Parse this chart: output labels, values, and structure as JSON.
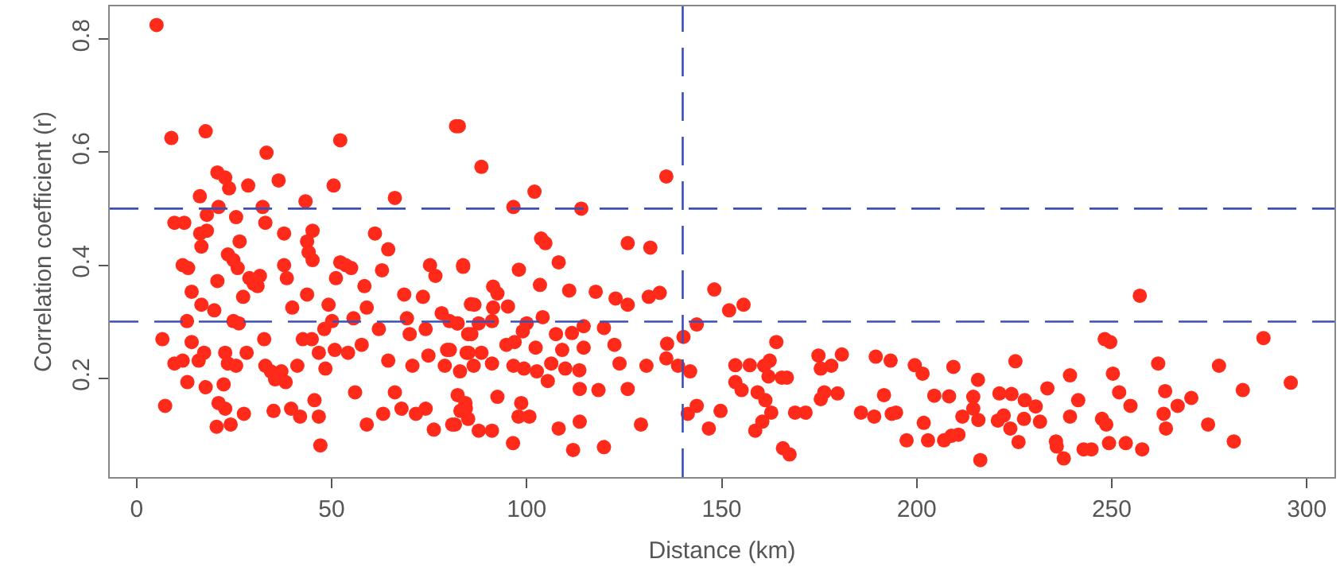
{
  "chart_data": {
    "type": "scatter",
    "xlabel": "Distance (km)",
    "ylabel": "Correlation coefficient (r)",
    "xlim": [
      -6.9,
      307.1
    ],
    "ylim": [
      0.025,
      0.858
    ],
    "xticks": [
      0,
      50,
      100,
      150,
      200,
      250,
      300
    ],
    "yticks": [
      0.2,
      0.4,
      0.6,
      0.8
    ],
    "marker": "circle",
    "ref_lines": [
      {
        "axis": "x",
        "value": 140,
        "color": "#3a4fb8",
        "line_style": "dashed"
      },
      {
        "axis": "y",
        "value": 0.5,
        "color": "#3a4fb8",
        "line_style": "dashed"
      },
      {
        "axis": "y",
        "value": 0.3,
        "color": "#3a4fb8",
        "line_style": "dashed"
      }
    ],
    "series": [
      {
        "color": "#ff2a1a",
        "x": [
          5.1,
          8.9,
          17.7,
          6.6,
          7.3,
          9.7,
          12.2,
          11.8,
          13.2,
          14.1,
          12.9,
          9.7,
          11.8,
          13.0,
          14.1,
          15.9,
          17.3,
          16.6,
          16.2,
          16.3,
          16.6,
          18.0,
          18.0,
          21.0,
          20.7,
          22.7,
          23.7,
          19.9,
          20.7,
          17.7,
          20.5,
          21.0,
          22.3,
          22.7,
          23.4,
          22.7,
          24.1,
          23.4,
          24.8,
          25.9,
          25.5,
          26.4,
          24.8,
          26.2,
          25.5,
          27.3,
          27.5,
          28.2,
          28.6,
          28.9,
          30.0,
          31.0,
          31.6,
          32.3,
          33.0,
          33.3,
          32.7,
          33.0,
          34.4,
          35.1,
          36.4,
          35.5,
          37.1,
          37.8,
          37.8,
          38.5,
          38.2,
          39.6,
          39.9,
          41.9,
          41.2,
          43.3,
          43.7,
          44.1,
          45.1,
          45.1,
          43.7,
          42.6,
          44.9,
          45.6,
          46.7,
          47.1,
          46.7,
          48.1,
          48.4,
          49.2,
          50.1,
          50.5,
          51.1,
          52.2,
          52.2,
          53.6,
          55.0,
          50.8,
          54.2,
          55.6,
          56.0,
          58.4,
          59.0,
          57.7,
          59.0,
          61.1,
          62.1,
          62.9,
          63.2,
          64.5,
          66.2,
          64.5,
          66.2,
          67.9,
          68.6,
          69.3,
          70.0,
          70.7,
          71.6,
          73.4,
          74.1,
          75.2,
          76.6,
          74.8,
          76.2,
          74.1,
          78.2,
          79.0,
          80.3,
          82.6,
          83.7,
          82.3,
          82.9,
          81.6,
          84.4,
          85.8,
          85.1,
          86.6,
          81.9,
          88.4,
          96.6,
          102.0,
          114.0,
          135.8,
          103.7,
          104.8,
          83.7,
          98.0,
          108.2,
          125.9,
          131.7,
          91.4,
          92.5,
          85.7,
          91.4,
          95.2,
          103.4,
          110.9,
          117.7,
          122.8,
          125.9,
          131.3,
          134.1,
          148.1,
          151.9,
          155.6,
          80.2,
          82.2,
          87.7,
          91.1,
          85.0,
          100.0,
          99.0,
          104.1,
          107.5,
          111.6,
          114.6,
          119.8,
          140.2,
          143.6,
          136.0,
          79.6,
          84.6,
          88.4,
          94.8,
          96.9,
          102.3,
          109.1,
          114.6,
          122.5,
          164.0,
          86.4,
          91.1,
          96.6,
          99.3,
          102.6,
          106.3,
          109.9,
          113.5,
          123.8,
          130.7,
          135.8,
          138.8,
          141.9,
          153.5,
          157.2,
          160.9,
          162.3,
          162.0,
          165.4,
          166.7,
          174.8,
          175.4,
          178.1,
          180.8,
          189.5,
          193.3,
          199.5,
          153.5,
          155.1,
          159.2,
          161.2,
          162.7,
          160.4,
          158.6,
          168.8,
          171.5,
          175.4,
          176.3,
          179.7,
          185.7,
          189.1,
          191.6,
          194.7,
          197.4,
          82.3,
          84.3,
          83.0,
          85.0,
          80.9,
          87.7,
          91.1,
          92.5,
          98.6,
          97.9,
          100.7,
          96.5,
          105.4,
          113.6,
          118.4,
          125.9,
          113.6,
          108.2,
          111.9,
          119.8,
          129.3,
          141.3,
          143.6,
          146.7,
          149.7,
          165.7,
          167.4,
          257.2,
          248.2,
          249.6,
          288.9,
          201.5,
          209.4,
          225.3,
          261.9,
          277.5,
          250.3,
          239.3,
          215.7,
          251.9,
          263.7,
          283.6,
          295.9,
          204.5,
          208.3,
          214.5,
          221.2,
          224.3,
          227.7,
          230.5,
          233.5,
          241.4,
          254.8,
          266.9,
          270.4,
          193.6,
          211.7,
          214.5,
          215.8,
          220.8,
          222.3,
          224.0,
          227.5,
          231.6,
          239.3,
          247.5,
          248.6,
          263.3,
          263.9,
          274.7,
          201.8,
          202.9,
          207.0,
          208.9,
          210.7,
          226.1,
          235.7,
          235.9,
          237.7,
          242.8,
          244.8,
          249.3,
          253.6,
          257.8,
          281.3,
          216.3
        ],
        "values": [
          0.825,
          0.625,
          0.637,
          0.269,
          0.151,
          0.475,
          0.475,
          0.4,
          0.395,
          0.353,
          0.301,
          0.226,
          0.231,
          0.193,
          0.264,
          0.231,
          0.245,
          0.33,
          0.522,
          0.456,
          0.433,
          0.489,
          0.461,
          0.503,
          0.564,
          0.555,
          0.536,
          0.32,
          0.372,
          0.184,
          0.114,
          0.156,
          0.189,
          0.245,
          0.226,
          0.146,
          0.118,
          0.419,
          0.409,
          0.395,
          0.485,
          0.442,
          0.301,
          0.297,
          0.222,
          0.344,
          0.137,
          0.245,
          0.541,
          0.377,
          0.367,
          0.363,
          0.381,
          0.503,
          0.475,
          0.599,
          0.269,
          0.222,
          0.212,
          0.142,
          0.55,
          0.198,
          0.212,
          0.456,
          0.4,
          0.377,
          0.193,
          0.146,
          0.325,
          0.132,
          0.222,
          0.513,
          0.442,
          0.423,
          0.461,
          0.409,
          0.348,
          0.269,
          0.269,
          0.161,
          0.132,
          0.081,
          0.245,
          0.287,
          0.217,
          0.33,
          0.301,
          0.541,
          0.377,
          0.621,
          0.405,
          0.4,
          0.395,
          0.25,
          0.245,
          0.306,
          0.175,
          0.363,
          0.325,
          0.259,
          0.118,
          0.456,
          0.287,
          0.391,
          0.137,
          0.428,
          0.519,
          0.231,
          0.175,
          0.146,
          0.348,
          0.306,
          0.278,
          0.222,
          0.137,
          0.344,
          0.287,
          0.4,
          0.381,
          0.24,
          0.109,
          0.146,
          0.315,
          0.222,
          0.25,
          0.646,
          0.4,
          0.297,
          0.212,
          0.118,
          0.146,
          0.278,
          0.245,
          0.33,
          0.646,
          0.574,
          0.503,
          0.53,
          0.5,
          0.557,
          0.447,
          0.439,
          0.397,
          0.392,
          0.405,
          0.439,
          0.431,
          0.362,
          0.35,
          0.331,
          0.325,
          0.327,
          0.365,
          0.355,
          0.353,
          0.341,
          0.33,
          0.344,
          0.351,
          0.357,
          0.32,
          0.33,
          0.301,
          0.297,
          0.297,
          0.301,
          0.278,
          0.297,
          0.283,
          0.308,
          0.278,
          0.28,
          0.292,
          0.289,
          0.273,
          0.295,
          0.261,
          0.25,
          0.245,
          0.245,
          0.259,
          0.264,
          0.254,
          0.25,
          0.254,
          0.259,
          0.264,
          0.222,
          0.226,
          0.222,
          0.217,
          0.212,
          0.226,
          0.217,
          0.214,
          0.226,
          0.222,
          0.235,
          0.222,
          0.212,
          0.223,
          0.223,
          0.222,
          0.231,
          0.203,
          0.201,
          0.201,
          0.24,
          0.217,
          0.222,
          0.242,
          0.238,
          0.231,
          0.223,
          0.193,
          0.179,
          0.175,
          0.161,
          0.139,
          0.123,
          0.107,
          0.139,
          0.139,
          0.163,
          0.175,
          0.173,
          0.139,
          0.132,
          0.17,
          0.139,
          0.09,
          0.17,
          0.156,
          0.142,
          0.128,
          0.118,
          0.107,
          0.107,
          0.167,
          0.156,
          0.132,
          0.132,
          0.085,
          0.195,
          0.181,
          0.179,
          0.181,
          0.123,
          0.111,
          0.073,
          0.078,
          0.118,
          0.137,
          0.151,
          0.111,
          0.142,
          0.076,
          0.065,
          0.346,
          0.269,
          0.264,
          0.271,
          0.208,
          0.22,
          0.23,
          0.226,
          0.222,
          0.208,
          0.205,
          0.197,
          0.175,
          0.177,
          0.179,
          0.192,
          0.169,
          0.168,
          0.167,
          0.173,
          0.172,
          0.161,
          0.15,
          0.182,
          0.161,
          0.151,
          0.151,
          0.165,
          0.137,
          0.132,
          0.146,
          0.126,
          0.125,
          0.134,
          0.111,
          0.128,
          0.123,
          0.132,
          0.128,
          0.118,
          0.137,
          0.111,
          0.118,
          0.121,
          0.09,
          0.09,
          0.098,
          0.1,
          0.087,
          0.088,
          0.079,
          0.058,
          0.074,
          0.074,
          0.085,
          0.085,
          0.074,
          0.088,
          0.055
        ]
      }
    ]
  }
}
